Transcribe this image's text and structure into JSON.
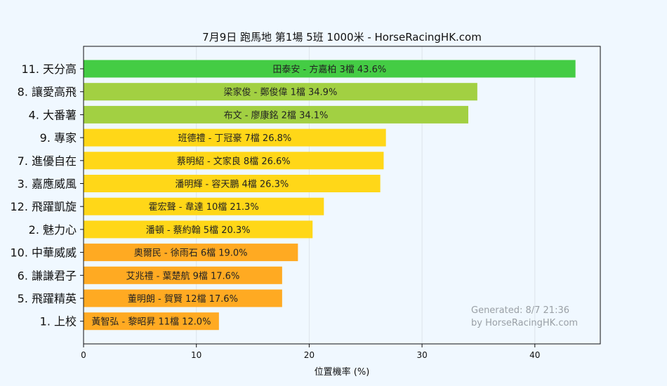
{
  "chart_data": {
    "type": "bar",
    "orientation": "horizontal",
    "title": "7月9日  跑馬地  第1場  5班  1000米 - HorseRacingHK.com",
    "xlabel": "位置機率 (%)",
    "ylabel": "",
    "xlim": [
      0,
      45.8
    ],
    "xticks": [
      "0",
      "10",
      "20",
      "30",
      "40"
    ],
    "grid": true,
    "categories": [
      "11. 天分高",
      "8. 讓愛高飛",
      "4. 大番薯",
      "9. 專家",
      "7. 進優自在",
      "3. 嘉應威風",
      "12. 飛躍凱旋",
      "2. 魅力心",
      "10. 中華威威",
      "6. 謙謙君子",
      "5. 飛躍精英",
      "1. 上校"
    ],
    "values": [
      43.6,
      34.9,
      34.1,
      26.8,
      26.6,
      26.3,
      21.3,
      20.3,
      19.0,
      17.6,
      17.6,
      12.0
    ],
    "bar_labels": [
      "田泰安 - 方嘉柏 3檔  43.6%",
      "梁家俊 - 鄭俊偉 1檔  34.9%",
      "布文 - 廖康銘 2檔  34.1%",
      "班德禮 - 丁冠豪 7檔  26.8%",
      "蔡明紹 - 文家良 8檔  26.6%",
      "潘明輝 - 容天鵬 4檔  26.3%",
      "霍宏聲 - 韋達 10檔  21.3%",
      "潘頓 - 蔡約翰 5檔  20.3%",
      "奧爾民 - 徐雨石 6檔  19.0%",
      "艾兆禮 - 葉楚航 9檔  17.6%",
      "董明朗 - 賀賢 12檔  17.6%",
      "黃智弘 - 黎昭昇 11檔  12.0%"
    ],
    "colors": [
      "#44cc44",
      "#a2d042",
      "#a2d042",
      "#ffd718",
      "#ffd718",
      "#ffd718",
      "#ffd718",
      "#ffd718",
      "#ffaa22",
      "#ffaa22",
      "#ffaa22",
      "#ffaa22"
    ]
  },
  "watermark": {
    "line1": "Generated: 8/7 21:36",
    "line2": "by HorseRacingHK.com"
  },
  "theme": {
    "background": "#f0f8ff",
    "plot_background": "#f0f8ff",
    "grid_color": "#dde3ea",
    "axis_color": "#111111"
  }
}
